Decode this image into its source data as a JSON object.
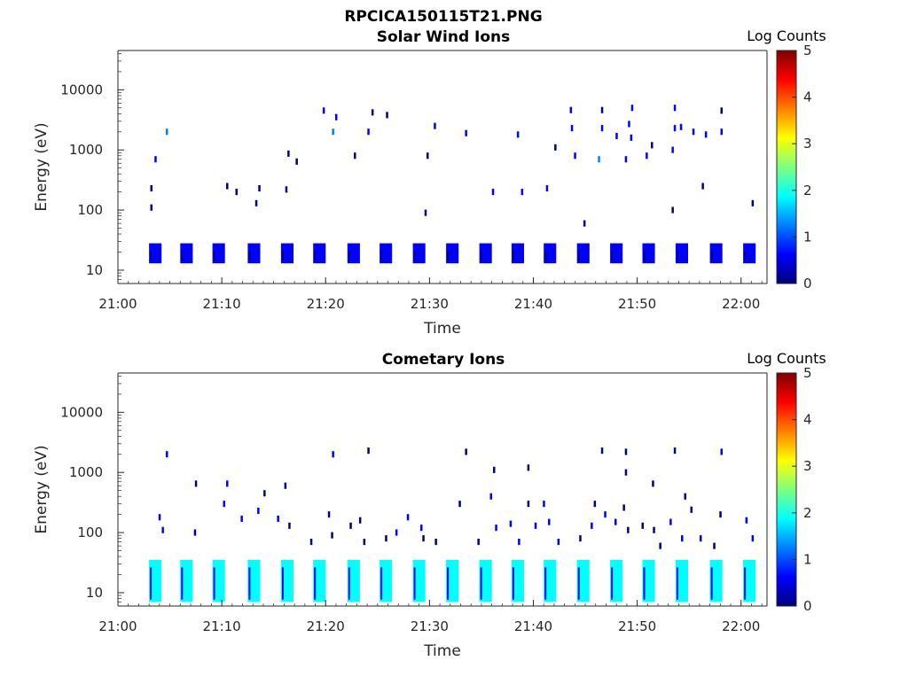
{
  "figure": {
    "title": "RPCICA150115T21.PNG"
  },
  "colors": {
    "axis": "#262626",
    "colormap": [
      "#00007f",
      "#0000ff",
      "#007fff",
      "#00ffff",
      "#7fff7f",
      "#ffff00",
      "#ff7f00",
      "#ff0000",
      "#7f0000"
    ]
  },
  "chart_data": [
    {
      "type": "heatmap",
      "title": "Solar Wind Ions",
      "xlabel": "Time",
      "ylabel": "Energy (eV)",
      "x_ticks": [
        "21:00",
        "21:10",
        "21:20",
        "21:30",
        "21:40",
        "21:50",
        "22:00"
      ],
      "x_tick_minutes": [
        0,
        10,
        20,
        30,
        40,
        50,
        60
      ],
      "y_ticks": [
        "10",
        "100",
        "1000",
        "10000"
      ],
      "y_tick_values": [
        10,
        100,
        1000,
        10000
      ],
      "y_scale": "log",
      "xlim_minutes": [
        0,
        62.5
      ],
      "ylim": [
        6,
        45000
      ],
      "colorbar": {
        "label": "Log Counts",
        "min": 0,
        "max": 5,
        "ticks": [
          "0",
          "1",
          "2",
          "3",
          "4",
          "5"
        ]
      },
      "low_energy_band": {
        "e_min": 13,
        "e_max": 28,
        "level": 0.5,
        "bursts_minutes": [
          3.0,
          6.0,
          9.1,
          12.5,
          15.7,
          18.8,
          22.1,
          25.2,
          28.4,
          31.6,
          34.8,
          37.9,
          41.0,
          44.2,
          47.4,
          50.5,
          53.7,
          57.0,
          60.2
        ]
      },
      "cells": [
        [
          4.7,
          2000,
          1.1
        ],
        [
          3.6,
          700,
          0.5
        ],
        [
          3.2,
          230,
          0.3
        ],
        [
          3.2,
          110,
          0.3
        ],
        [
          10.5,
          250,
          0.3
        ],
        [
          11.4,
          200,
          0.3
        ],
        [
          13.6,
          230,
          0.3
        ],
        [
          13.3,
          130,
          0.3
        ],
        [
          16.2,
          220,
          0.3
        ],
        [
          16.4,
          870,
          0.3
        ],
        [
          17.2,
          640,
          0.3
        ],
        [
          19.8,
          4500,
          0.4
        ],
        [
          20.7,
          2000,
          1.0
        ],
        [
          21.0,
          3500,
          0.5
        ],
        [
          22.8,
          800,
          0.3
        ],
        [
          24.1,
          2000,
          0.9
        ],
        [
          24.5,
          4200,
          0.3
        ],
        [
          25.9,
          3800,
          0.3
        ],
        [
          29.8,
          800,
          0.3
        ],
        [
          29.6,
          90,
          0.3
        ],
        [
          30.5,
          2500,
          0.7
        ],
        [
          33.5,
          1900,
          0.9
        ],
        [
          36.1,
          200,
          0.8
        ],
        [
          38.9,
          200,
          0.4
        ],
        [
          38.5,
          1800,
          0.4
        ],
        [
          41.3,
          230,
          0.5
        ],
        [
          42.1,
          1100,
          0.3
        ],
        [
          43.6,
          4600,
          0.5
        ],
        [
          43.7,
          2300,
          0.6
        ],
        [
          44.0,
          800,
          0.8
        ],
        [
          44.9,
          60,
          0.3
        ],
        [
          46.6,
          2300,
          0.9
        ],
        [
          46.3,
          700,
          1.5
        ],
        [
          46.6,
          4600,
          0.3
        ],
        [
          48.0,
          1700,
          0.5
        ],
        [
          48.9,
          700,
          0.6
        ],
        [
          49.5,
          5000,
          0.4
        ],
        [
          49.4,
          1600,
          0.9
        ],
        [
          49.2,
          2700,
          0.6
        ],
        [
          50.9,
          800,
          0.4
        ],
        [
          51.4,
          1200,
          0.3
        ],
        [
          53.6,
          5000,
          0.5
        ],
        [
          53.4,
          1000,
          0.9
        ],
        [
          53.6,
          2300,
          0.8
        ],
        [
          54.2,
          2400,
          0.4
        ],
        [
          53.4,
          100,
          0.3
        ],
        [
          55.4,
          2000,
          0.5
        ],
        [
          56.6,
          1800,
          0.4
        ],
        [
          56.3,
          250,
          0.3
        ],
        [
          58.1,
          4500,
          0.3
        ],
        [
          58.1,
          2000,
          0.6
        ],
        [
          61.1,
          130,
          0.3
        ]
      ]
    },
    {
      "type": "heatmap",
      "title": "Cometary Ions",
      "xlabel": "Time",
      "ylabel": "Energy (eV)",
      "x_ticks": [
        "21:00",
        "21:10",
        "21:20",
        "21:30",
        "21:40",
        "21:50",
        "22:00"
      ],
      "x_tick_minutes": [
        0,
        10,
        20,
        30,
        40,
        50,
        60
      ],
      "y_ticks": [
        "10",
        "100",
        "1000",
        "10000"
      ],
      "y_tick_values": [
        10,
        100,
        1000,
        10000
      ],
      "y_scale": "log",
      "xlim_minutes": [
        0,
        62.5
      ],
      "ylim": [
        6,
        45000
      ],
      "colorbar": {
        "label": "Log Counts",
        "min": 0,
        "max": 5,
        "ticks": [
          "0",
          "1",
          "2",
          "3",
          "4",
          "5"
        ]
      },
      "low_energy_band": {
        "e_min": 7,
        "e_max": 35,
        "level": 1.8,
        "bursts_minutes": [
          3.0,
          6.0,
          9.1,
          12.5,
          15.7,
          18.8,
          22.1,
          25.2,
          28.4,
          31.6,
          34.8,
          37.9,
          41.0,
          44.2,
          47.4,
          50.5,
          53.7,
          57.0,
          60.2
        ]
      },
      "cells": [
        [
          4.7,
          2000,
          0.6
        ],
        [
          20.7,
          2000,
          0.5
        ],
        [
          24.1,
          2300,
          0.3
        ],
        [
          33.5,
          2200,
          0.3
        ],
        [
          36.2,
          1100,
          0.3
        ],
        [
          39.5,
          1200,
          0.3
        ],
        [
          46.6,
          2300,
          0.3
        ],
        [
          48.9,
          2200,
          0.3
        ],
        [
          48.9,
          1000,
          0.3
        ],
        [
          51.5,
          650,
          0.3
        ],
        [
          53.6,
          2300,
          0.3
        ],
        [
          58.1,
          2200,
          0.5
        ],
        [
          4.0,
          180,
          0.4
        ],
        [
          4.3,
          110,
          0.4
        ],
        [
          7.5,
          650,
          0.3
        ],
        [
          7.4,
          100,
          0.3
        ],
        [
          10.5,
          650,
          0.4
        ],
        [
          10.2,
          300,
          0.4
        ],
        [
          11.9,
          170,
          0.4
        ],
        [
          13.5,
          230,
          0.4
        ],
        [
          14.1,
          450,
          0.3
        ],
        [
          15.4,
          170,
          0.4
        ],
        [
          16.1,
          600,
          0.3
        ],
        [
          16.5,
          130,
          0.3
        ],
        [
          18.6,
          70,
          0.3
        ],
        [
          20.3,
          200,
          0.3
        ],
        [
          20.6,
          90,
          0.3
        ],
        [
          22.4,
          130,
          0.3
        ],
        [
          23.3,
          160,
          0.3
        ],
        [
          23.7,
          70,
          0.3
        ],
        [
          25.8,
          80,
          0.3
        ],
        [
          26.8,
          100,
          0.4
        ],
        [
          27.9,
          180,
          0.4
        ],
        [
          29.2,
          120,
          0.4
        ],
        [
          29.4,
          80,
          0.3
        ],
        [
          30.6,
          70,
          0.3
        ],
        [
          32.9,
          300,
          0.3
        ],
        [
          34.7,
          70,
          0.3
        ],
        [
          35.9,
          400,
          0.4
        ],
        [
          36.4,
          120,
          0.5
        ],
        [
          37.8,
          140,
          0.4
        ],
        [
          38.6,
          70,
          0.4
        ],
        [
          39.5,
          300,
          0.3
        ],
        [
          40.2,
          130,
          0.5
        ],
        [
          41.0,
          300,
          0.5
        ],
        [
          41.5,
          150,
          0.6
        ],
        [
          42.4,
          70,
          0.4
        ],
        [
          44.5,
          80,
          0.3
        ],
        [
          45.9,
          300,
          0.3
        ],
        [
          45.6,
          130,
          0.5
        ],
        [
          46.9,
          200,
          0.4
        ],
        [
          47.9,
          150,
          0.4
        ],
        [
          48.7,
          260,
          0.3
        ],
        [
          49.1,
          110,
          0.3
        ],
        [
          50.5,
          130,
          0.3
        ],
        [
          51.6,
          110,
          0.3
        ],
        [
          52.2,
          60,
          0.3
        ],
        [
          53.2,
          150,
          0.6
        ],
        [
          54.3,
          80,
          0.5
        ],
        [
          54.6,
          400,
          0.3
        ],
        [
          55.2,
          240,
          0.3
        ],
        [
          56.1,
          80,
          0.4
        ],
        [
          57.4,
          60,
          0.3
        ],
        [
          58.0,
          200,
          0.3
        ],
        [
          60.5,
          160,
          0.4
        ],
        [
          61.1,
          80,
          0.4
        ]
      ]
    }
  ]
}
